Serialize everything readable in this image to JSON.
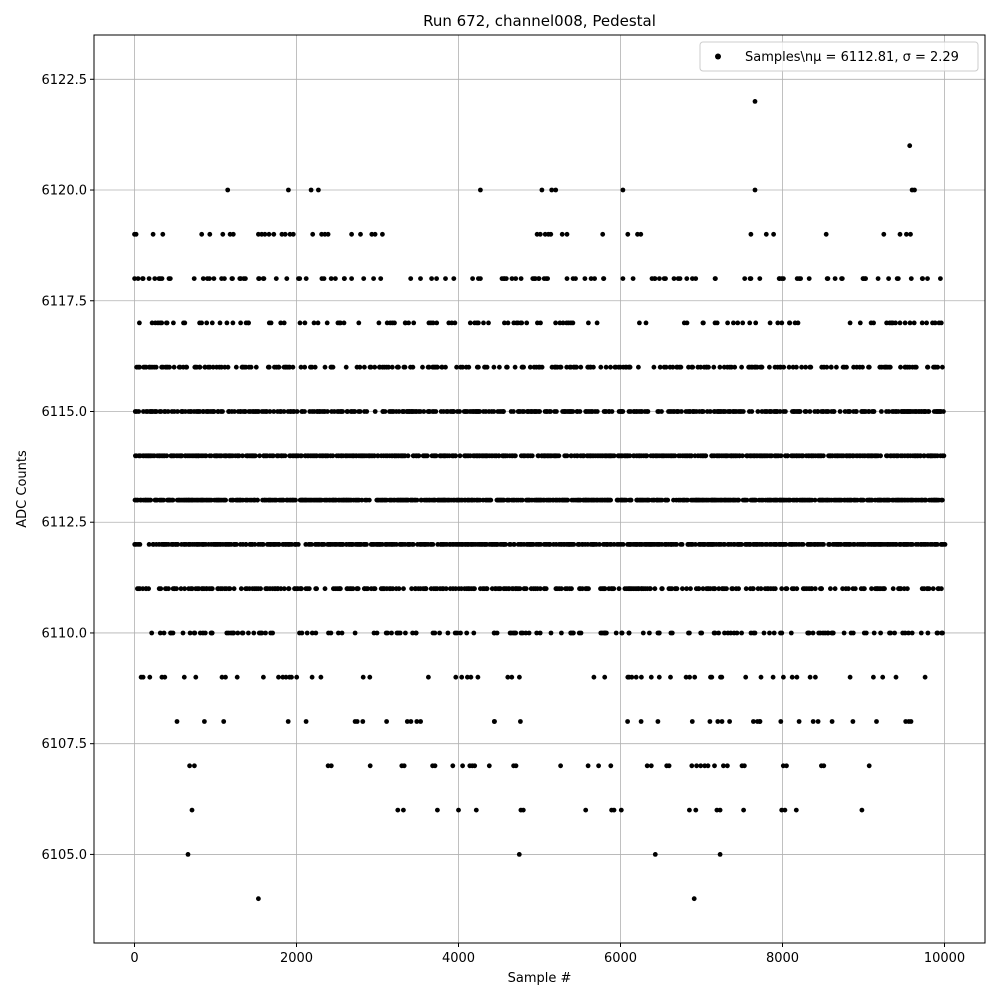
{
  "chart_data": {
    "type": "scatter",
    "title": "Run 672, channel008, Pedestal",
    "xlabel": "Sample #",
    "ylabel": "ADC Counts",
    "xlim": [
      -500,
      10500
    ],
    "ylim": [
      6103,
      6123.5
    ],
    "xticks": [
      0,
      2000,
      4000,
      6000,
      8000,
      10000
    ],
    "xtick_labels": [
      "0",
      "2000",
      "4000",
      "6000",
      "8000",
      "10000"
    ],
    "yticks": [
      6105.0,
      6107.5,
      6110.0,
      6112.5,
      6115.0,
      6117.5,
      6120.0,
      6122.5
    ],
    "ytick_labels": [
      "6105.0",
      "6107.5",
      "6110.0",
      "6112.5",
      "6115.0",
      "6117.5",
      "6120.0",
      "6122.5"
    ],
    "grid": true,
    "legend_position": "top-right",
    "series": [
      {
        "name": "Samples\\nμ = 6112.81, σ = 2.29",
        "color": "#000000",
        "marker": "circle",
        "x_range": [
          0,
          9999
        ],
        "level_density": {
          "6104": 0.0002,
          "6105": 0.0004,
          "6106": 0.003,
          "6107": 0.008,
          "6108": 0.035,
          "6109": 0.06,
          "6110": 0.16,
          "6111": 0.33,
          "6112": 0.55,
          "6113": 0.62,
          "6114": 0.6,
          "6115": 0.45,
          "6116": 0.25,
          "6117": 0.13,
          "6118": 0.06,
          "6119": 0.03,
          "6120": 0.0008,
          "6121": 0.0001,
          "6122": 0.0001
        },
        "x": [
          1530,
          6910,
          660,
          4750,
          6430,
          7230,
          9570,
          7660,
          1150,
          1900,
          2180,
          2270,
          4270,
          5030,
          5150,
          5200,
          6030,
          7660,
          9600,
          9630,
          710,
          3250,
          3320,
          3740,
          4000,
          4220,
          4770,
          4800,
          5570,
          5890,
          5920,
          6010,
          6850,
          6930,
          7190,
          7230,
          7520,
          7990,
          8030,
          8170,
          8980,
          680,
          740,
          2390,
          2430,
          2910,
          3300,
          3330,
          3680,
          3710,
          3930,
          4050,
          4140,
          4170,
          4200,
          4380,
          4680,
          4710,
          5260,
          5600,
          5730,
          5880,
          6330,
          6380,
          6570,
          6600,
          6880,
          6940,
          6990,
          7040,
          7080,
          7160,
          7270,
          7320,
          7500,
          7530,
          8010,
          8050,
          8480,
          8510,
          9070,
          0,
          20,
          230,
          350,
          830,
          930,
          1090,
          1180,
          1220,
          1530,
          1570,
          1610,
          1660,
          1720,
          1820,
          1860,
          1920,
          1960,
          2200,
          2310,
          2350,
          2390,
          2680,
          2790,
          2930,
          2970,
          3060,
          4970,
          5010,
          5070,
          5110,
          5140,
          5280,
          5340,
          5780,
          6090,
          6210,
          6250,
          7610,
          7800,
          7890,
          8540,
          9250,
          9450,
          9530,
          9580,
          9730,
          100,
          180,
          250,
          340,
          850,
          900,
          980,
          1110,
          1210,
          1300,
          1350,
          1540,
          1590,
          1750,
          1880,
          2040,
          2120,
          2340,
          2480,
          2590,
          2680,
          2830,
          3040,
          3410,
          3730,
          3840,
          4270,
          4590,
          4660,
          4990,
          5100,
          5340,
          5560,
          5680,
          5790,
          6030,
          6420,
          6480,
          6660,
          7600,
          7720,
          7990,
          8330,
          8560,
          8650,
          8730,
          9180,
          9310,
          9430,
          9590,
          9790,
          9950
        ]
      }
    ]
  }
}
